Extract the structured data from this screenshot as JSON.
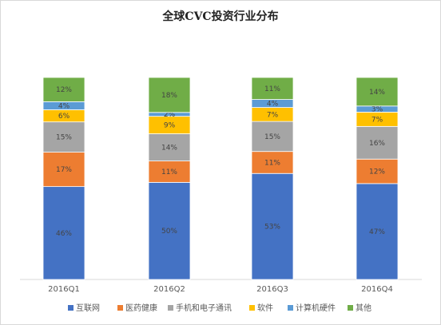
{
  "chart_data": {
    "type": "bar",
    "stacked": true,
    "percent": true,
    "title": "全球CVC投资行业分布",
    "categories": [
      "2016Q1",
      "2016Q2",
      "2016Q3",
      "2016Q4"
    ],
    "series": [
      {
        "name": "互联网",
        "color": "#4472c4",
        "values": [
          46,
          50,
          53,
          47
        ],
        "labels": [
          "46%",
          "50%",
          "53%",
          "47%"
        ]
      },
      {
        "name": "医药健康",
        "color": "#ed7d31",
        "values": [
          17,
          11,
          11,
          12
        ],
        "labels": [
          "17%",
          "11%",
          "11%",
          "12%"
        ]
      },
      {
        "name": "手机和电子通讯",
        "color": "#a5a5a5",
        "values": [
          15,
          14,
          15,
          16
        ],
        "labels": [
          "15%",
          "14%",
          "15%",
          "16%"
        ]
      },
      {
        "name": "软件",
        "color": "#ffc000",
        "values": [
          6,
          9,
          7,
          7
        ],
        "labels": [
          "6%",
          "9%",
          "7%",
          "7%"
        ]
      },
      {
        "name": "计算机硬件",
        "color": "#5b9bd5",
        "values": [
          4,
          2,
          4,
          3
        ],
        "labels": [
          "4%",
          "2%",
          "4%",
          "3%"
        ]
      },
      {
        "name": "其他",
        "color": "#70ad47",
        "values": [
          12,
          18,
          11,
          14
        ],
        "labels": [
          "12%",
          "18%",
          "11%",
          "14%"
        ]
      }
    ],
    "ylim": [
      0,
      100
    ],
    "grid": false,
    "legend": "bottom"
  }
}
